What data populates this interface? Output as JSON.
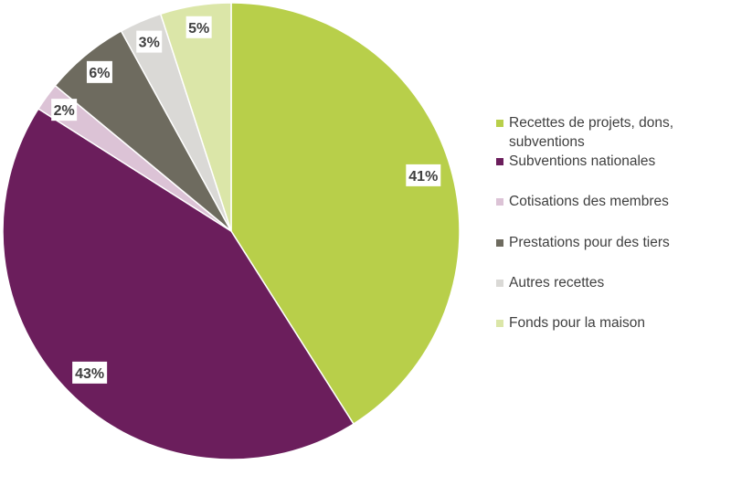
{
  "chart_data": {
    "type": "pie",
    "start_angle": "top",
    "direction": "clockwise",
    "legend_position": "right",
    "categories": [
      "Recettes de projets, dons, subventions",
      "Subventions nationales",
      "Cotisations des membres",
      "Prestations pour des tiers",
      "Autres recettes",
      "Fonds pour la maison"
    ],
    "values": [
      41,
      43,
      2,
      6,
      3,
      5
    ],
    "labels": [
      "41%",
      "43%",
      "2%",
      "6%",
      "3%",
      "5%"
    ],
    "colors": [
      "#b8cf4a",
      "#6b1e5c",
      "#dcc3d6",
      "#6e6b5f",
      "#dad9d6",
      "#dbe6a8"
    ]
  }
}
